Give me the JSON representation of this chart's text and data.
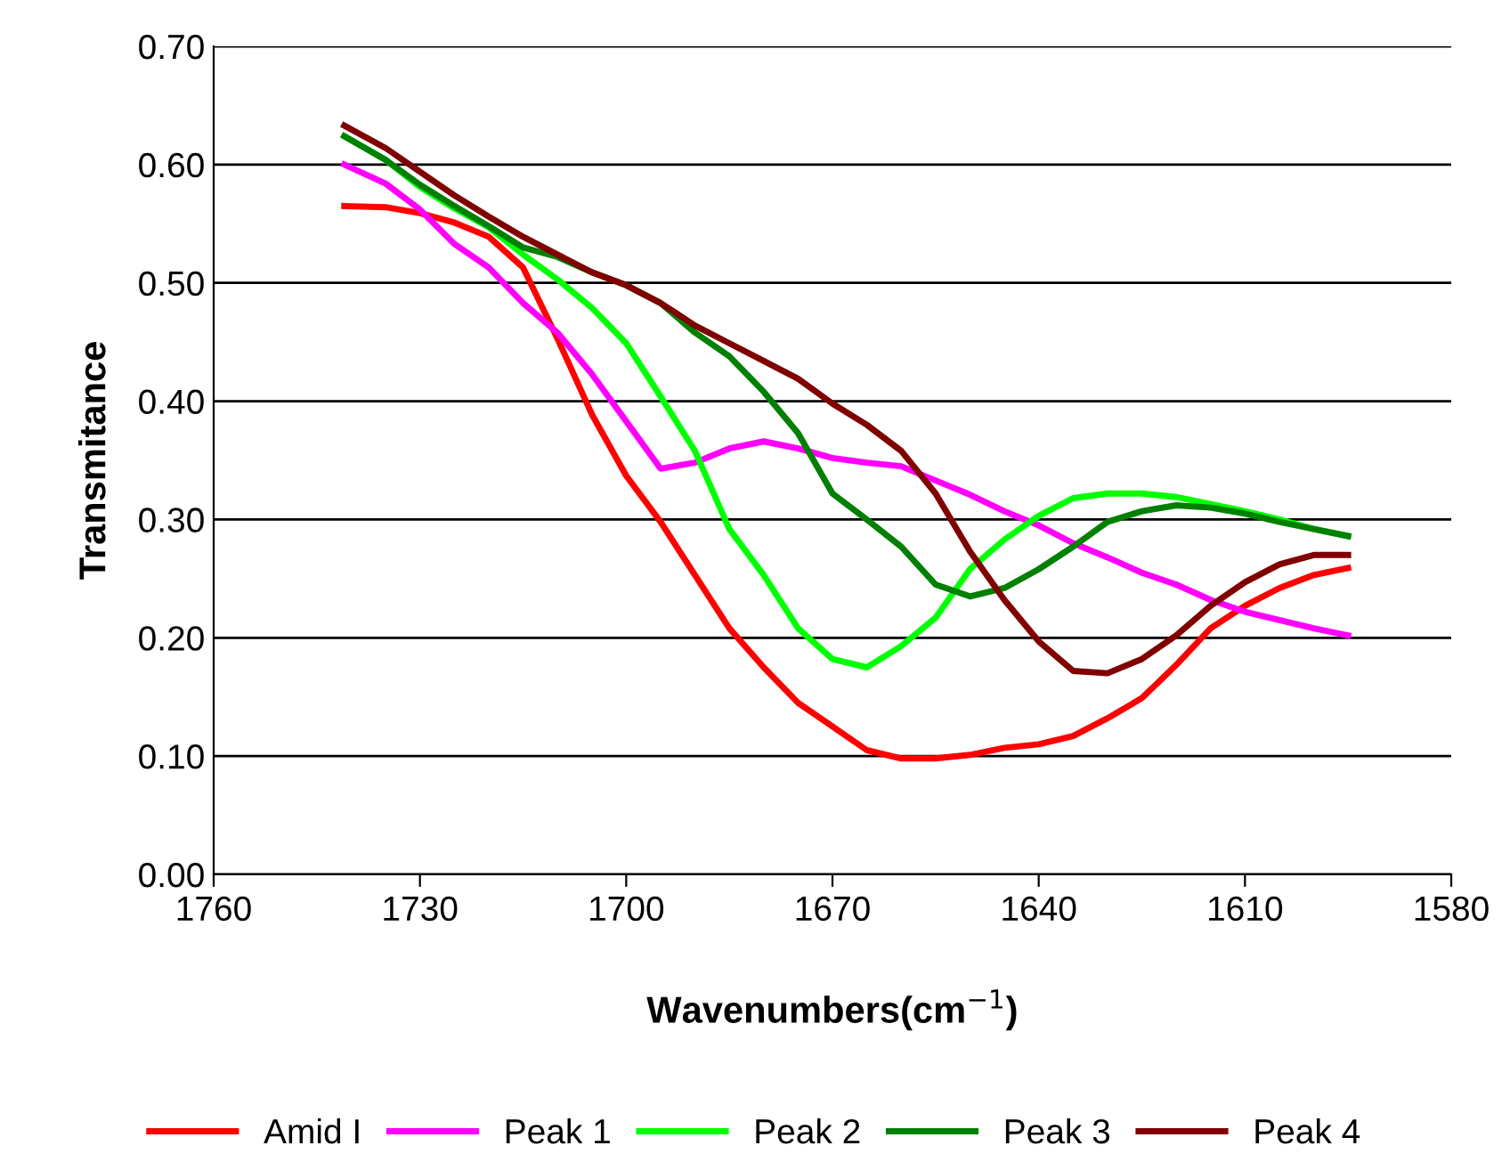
{
  "chart_data": {
    "type": "line",
    "xlabel": "Wavenumbers(cm$^{−1}$)",
    "ylabel": "Transmitance",
    "x": [
      1741,
      1735,
      1730,
      1725,
      1720,
      1715,
      1710,
      1705,
      1700,
      1695,
      1690,
      1685,
      1680,
      1675,
      1670,
      1665,
      1660,
      1655,
      1650,
      1645,
      1640,
      1635,
      1630,
      1625,
      1620,
      1615,
      1610,
      1605,
      1600,
      1595
    ],
    "series": [
      {
        "name": "Amid I",
        "color": "#ff0000",
        "values": [
          0.565,
          0.564,
          0.559,
          0.551,
          0.539,
          0.513,
          0.453,
          0.389,
          0.337,
          0.298,
          0.253,
          0.208,
          0.175,
          0.145,
          0.125,
          0.105,
          0.098,
          0.098,
          0.101,
          0.107,
          0.11,
          0.117,
          0.132,
          0.149,
          0.177,
          0.208,
          0.227,
          0.242,
          0.253,
          0.259
        ]
      },
      {
        "name": "Peak 1",
        "color": "#ff00ff",
        "values": [
          0.6,
          0.584,
          0.562,
          0.533,
          0.513,
          0.483,
          0.458,
          0.423,
          0.383,
          0.343,
          0.348,
          0.36,
          0.366,
          0.36,
          0.352,
          0.348,
          0.345,
          0.333,
          0.321,
          0.307,
          0.295,
          0.28,
          0.268,
          0.255,
          0.245,
          0.232,
          0.222,
          0.215,
          0.208,
          0.202
        ]
      },
      {
        "name": "Peak 2",
        "color": "#00ff00",
        "values": [
          0.624,
          0.604,
          0.581,
          0.563,
          0.547,
          0.524,
          0.503,
          0.479,
          0.449,
          0.404,
          0.358,
          0.292,
          0.253,
          0.208,
          0.182,
          0.175,
          0.193,
          0.217,
          0.258,
          0.283,
          0.303,
          0.318,
          0.322,
          0.322,
          0.319,
          0.313,
          0.307,
          0.3,
          0.292,
          0.286
        ]
      },
      {
        "name": "Peak 3",
        "color": "#008000",
        "values": [
          0.624,
          0.604,
          0.583,
          0.565,
          0.548,
          0.53,
          0.522,
          0.509,
          0.498,
          0.483,
          0.458,
          0.438,
          0.408,
          0.373,
          0.322,
          0.3,
          0.277,
          0.245,
          0.235,
          0.242,
          0.258,
          0.277,
          0.298,
          0.307,
          0.312,
          0.31,
          0.305,
          0.298,
          0.292,
          0.286
        ]
      },
      {
        "name": "Peak 4",
        "color": "#800000",
        "values": [
          0.633,
          0.614,
          0.594,
          0.574,
          0.556,
          0.539,
          0.524,
          0.509,
          0.498,
          0.483,
          0.464,
          0.449,
          0.434,
          0.419,
          0.398,
          0.38,
          0.358,
          0.322,
          0.273,
          0.232,
          0.197,
          0.172,
          0.17,
          0.182,
          0.202,
          0.227,
          0.247,
          0.262,
          0.27,
          0.27
        ]
      }
    ],
    "xlim": [
      1760,
      1580
    ],
    "xticks": [
      1760,
      1730,
      1700,
      1670,
      1640,
      1610,
      1580
    ],
    "ylim": [
      0,
      0.7
    ],
    "yticks": [
      {
        "value": 0,
        "label": "0.00"
      },
      {
        "value": 0.1,
        "label": "0.10"
      },
      {
        "value": 0.2,
        "label": "0.20"
      },
      {
        "value": 0.3,
        "label": "0.30"
      },
      {
        "value": 0.4,
        "label": "0.40"
      },
      {
        "value": 0.5,
        "label": "0.50"
      },
      {
        "value": 0.6,
        "label": "0.60"
      },
      {
        "value": 0.7,
        "label": "0.70"
      }
    ],
    "grid": "y",
    "legend": "bottom",
    "marker": "none",
    "line_style": "solid"
  }
}
